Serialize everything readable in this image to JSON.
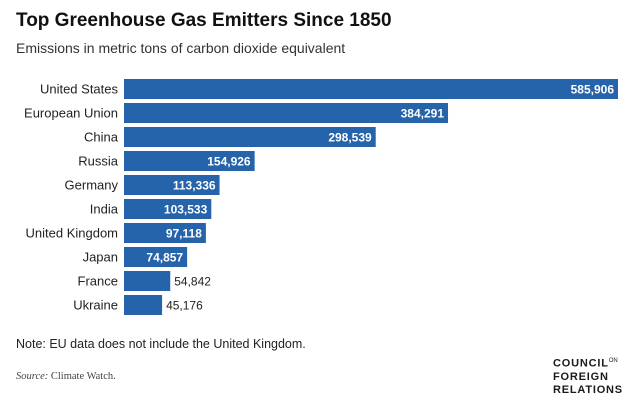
{
  "title": "Top Greenhouse Gas Emitters Since 1850",
  "subtitle": "Emissions in metric tons of carbon dioxide equivalent",
  "note": "Note: EU data does not include the United Kingdom.",
  "source_label": "Source:",
  "source_text": "Climate Watch.",
  "logo": {
    "line1": "COUNCIL",
    "line1_small": "ON",
    "line2": "FOREIGN",
    "line3": "RELATIONS"
  },
  "colors": {
    "bar": "#2563aa",
    "value_inside": "#ffffff",
    "value_outside": "#222222"
  },
  "chart_data": {
    "type": "bar",
    "orientation": "horizontal",
    "categories": [
      "United States",
      "European Union",
      "China",
      "Russia",
      "Germany",
      "India",
      "United Kingdom",
      "Japan",
      "France",
      "Ukraine"
    ],
    "values": [
      585906,
      384291,
      298539,
      154926,
      113336,
      103533,
      97118,
      74857,
      54842,
      45176
    ],
    "value_labels": [
      "585,906",
      "384,291",
      "298,539",
      "154,926",
      "113,336",
      "103,533",
      "97,118",
      "74,857",
      "54,842",
      "45,176"
    ],
    "title": "Top Greenhouse Gas Emitters Since 1850",
    "xlabel": "",
    "ylabel": "",
    "xlim": [
      0,
      585906
    ],
    "grid": false,
    "legend": "none"
  }
}
